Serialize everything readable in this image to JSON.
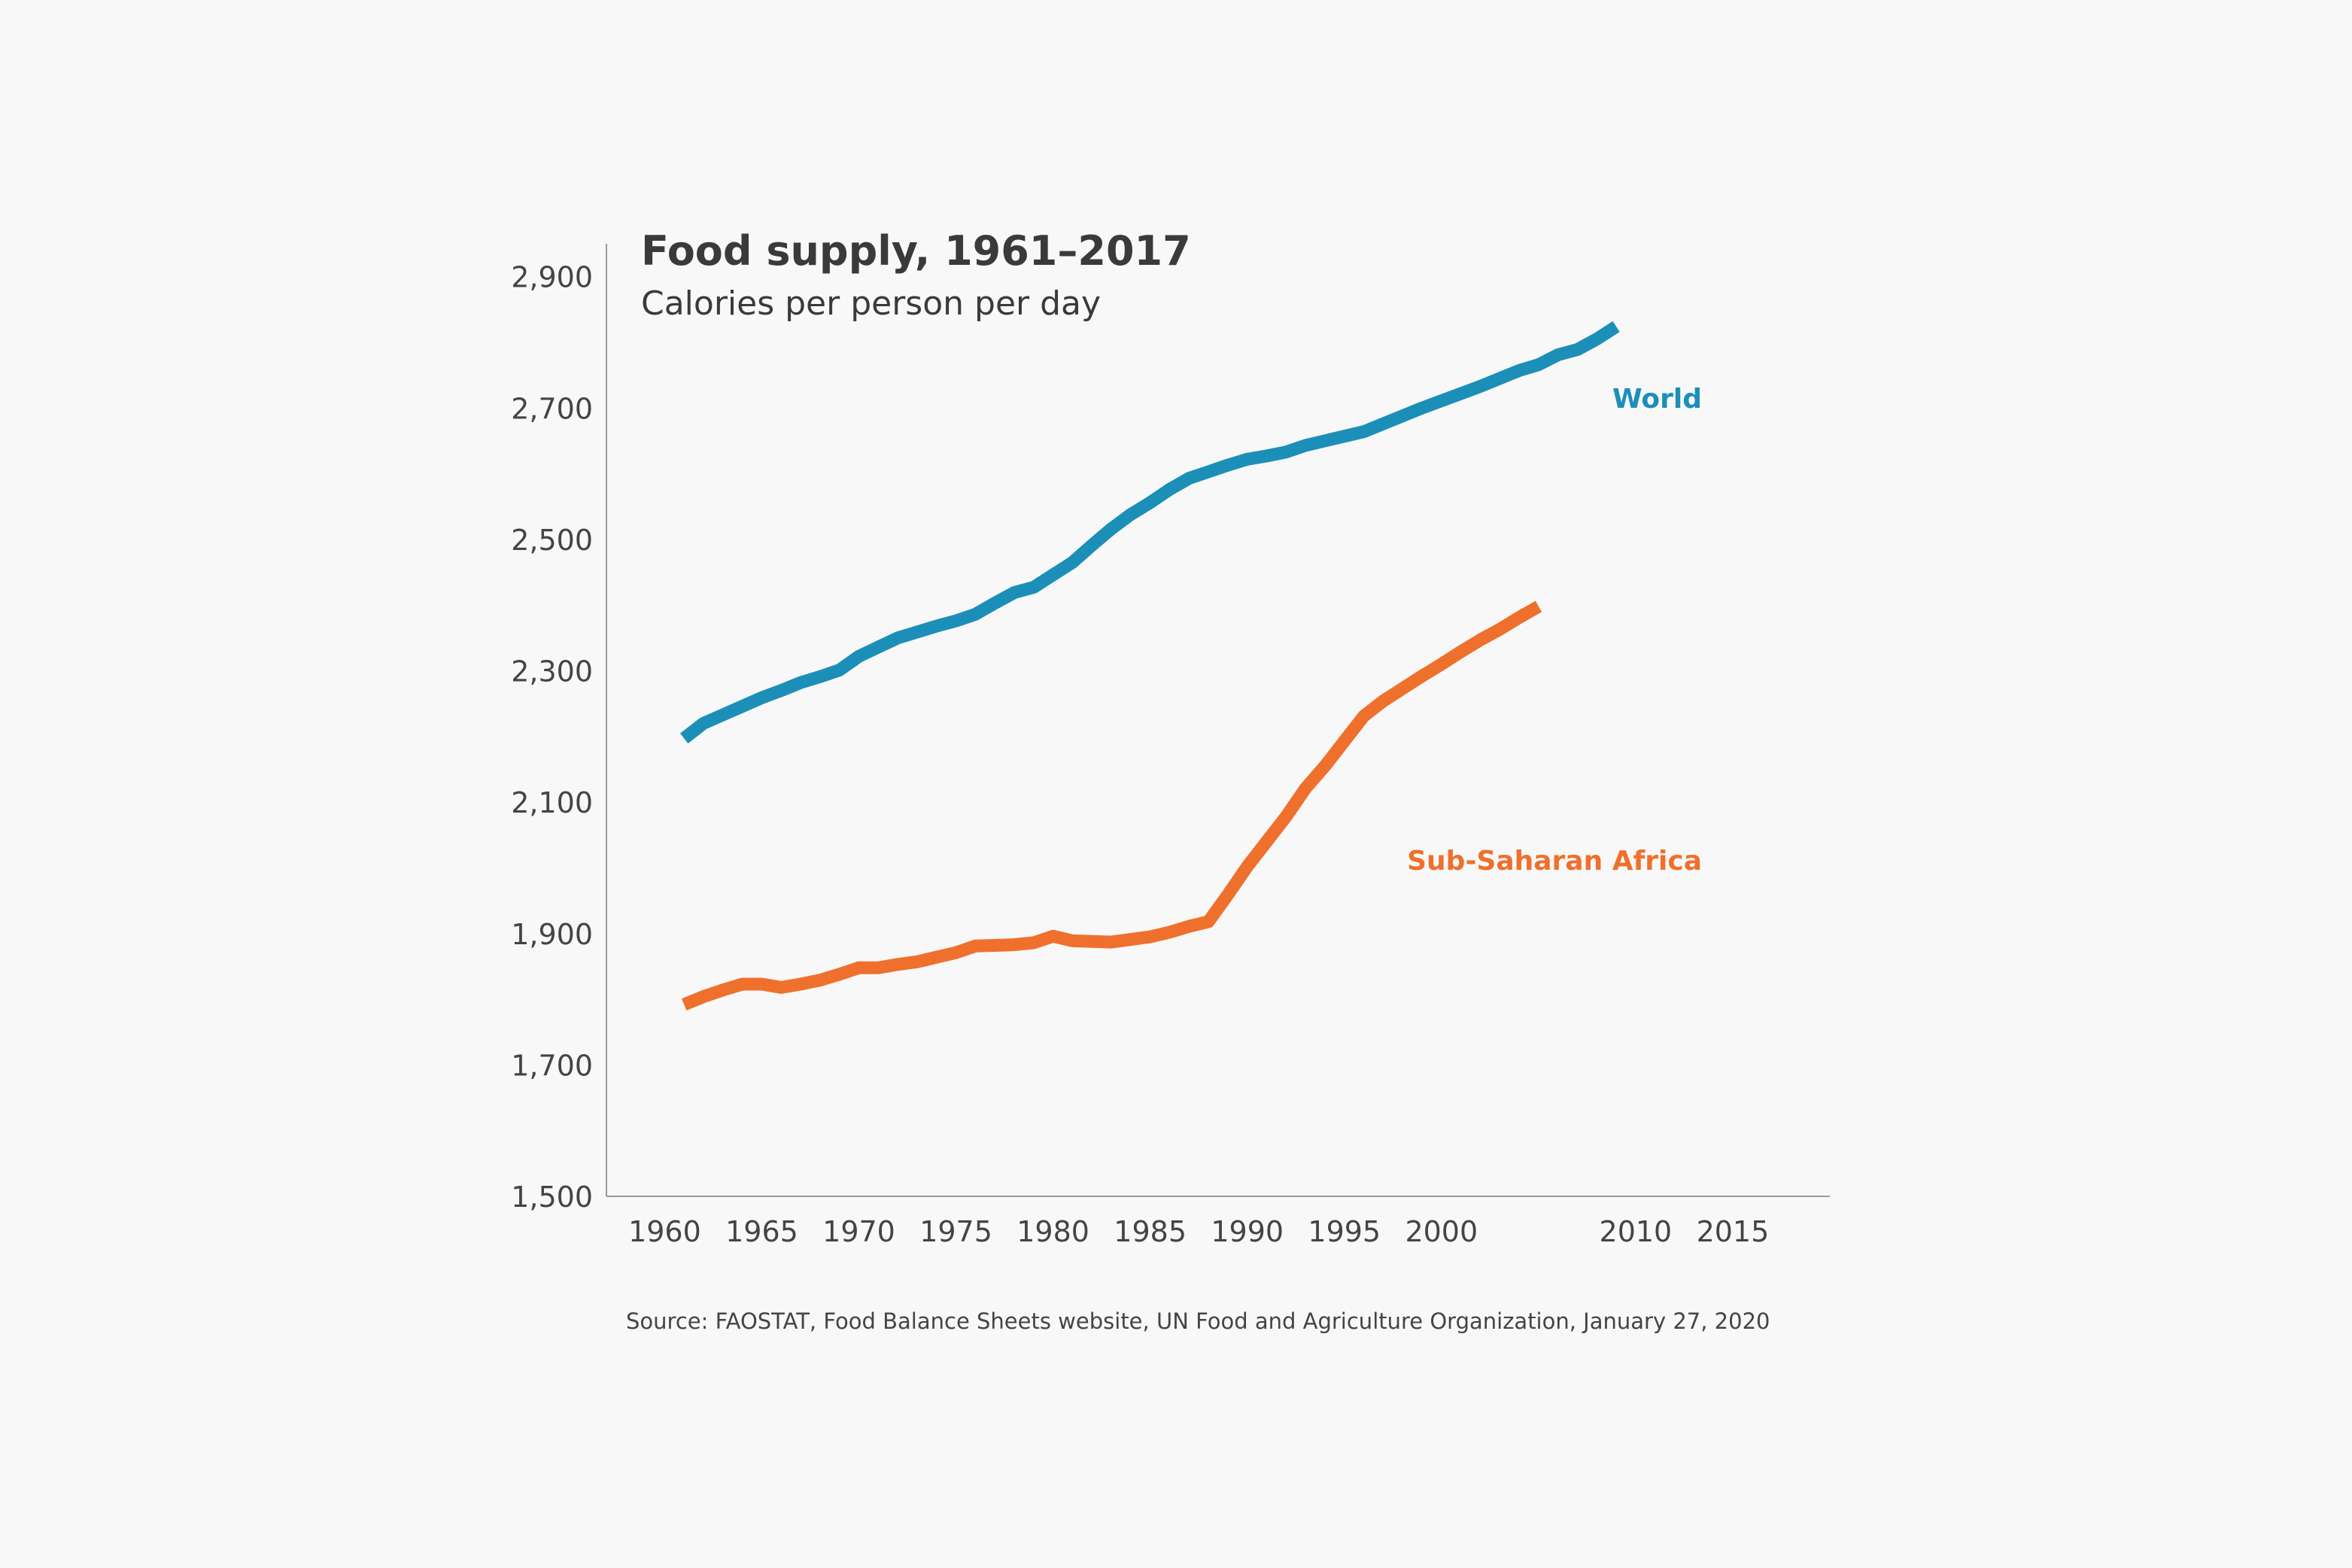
{
  "chart_data": {
    "type": "line",
    "title": "Food supply, 1961–2017",
    "subtitle": "Calories per person per day",
    "source": "Source: FAOSTAT, Food Balance Sheets website, UN Food and Agriculture Organization, January 27, 2020",
    "xlabel": "",
    "ylabel": "",
    "xlim": [
      1957,
      2020
    ],
    "ylim": [
      1500,
      2950
    ],
    "grid": false,
    "y_ticks": [
      1500,
      1700,
      1900,
      2100,
      2300,
      2500,
      2700,
      2900
    ],
    "y_tick_labels": [
      "1,500",
      "1,700",
      "1,900",
      "2,100",
      "2,300",
      "2,500",
      "2,700",
      "2,900"
    ],
    "x_ticks": [
      1960,
      1965,
      1970,
      1975,
      1980,
      1985,
      1990,
      1995,
      2000,
      2010,
      2015
    ],
    "x_tick_labels": [
      "1960",
      "1965",
      "1970",
      "1975",
      "1980",
      "1985",
      "1990",
      "1995",
      "2000",
      "2010",
      "2015"
    ],
    "series": [
      {
        "name": "World",
        "color": "#1b8fb8",
        "points": [
          [
            1961,
            2197
          ],
          [
            1962,
            2220
          ],
          [
            1963,
            2233
          ],
          [
            1964,
            2246
          ],
          [
            1965,
            2259
          ],
          [
            1966,
            2270
          ],
          [
            1967,
            2282
          ],
          [
            1968,
            2291
          ],
          [
            1969,
            2301
          ],
          [
            1970,
            2322
          ],
          [
            1971,
            2336
          ],
          [
            1972,
            2350
          ],
          [
            1973,
            2359
          ],
          [
            1974,
            2368
          ],
          [
            1975,
            2376
          ],
          [
            1976,
            2386
          ],
          [
            1977,
            2403
          ],
          [
            1978,
            2419
          ],
          [
            1979,
            2427
          ],
          [
            1980,
            2446
          ],
          [
            1981,
            2465
          ],
          [
            1982,
            2491
          ],
          [
            1983,
            2516
          ],
          [
            1984,
            2538
          ],
          [
            1985,
            2556
          ],
          [
            1986,
            2576
          ],
          [
            1987,
            2593
          ],
          [
            1988,
            2603
          ],
          [
            1989,
            2613
          ],
          [
            1990,
            2622
          ],
          [
            1991,
            2627
          ],
          [
            1992,
            2633
          ],
          [
            1993,
            2643
          ],
          [
            1994,
            2650
          ],
          [
            1995,
            2657
          ],
          [
            1996,
            2664
          ],
          [
            1997,
            2676
          ],
          [
            1998,
            2688
          ],
          [
            1999,
            2700
          ],
          [
            2000,
            2711
          ],
          [
            2001,
            2722
          ],
          [
            2002,
            2733
          ],
          [
            2003,
            2745
          ],
          [
            2004,
            2757
          ],
          [
            2005,
            2766
          ],
          [
            2006,
            2781
          ],
          [
            2007,
            2789
          ],
          [
            2008,
            2805
          ],
          [
            2009,
            2824
          ]
        ]
      },
      {
        "name": "Sub-Saharan Africa",
        "color": "#ef702c",
        "points": [
          [
            1961,
            1792
          ],
          [
            1962,
            1804
          ],
          [
            1963,
            1814
          ],
          [
            1964,
            1823
          ],
          [
            1965,
            1823
          ],
          [
            1966,
            1818
          ],
          [
            1967,
            1823
          ],
          [
            1968,
            1829
          ],
          [
            1969,
            1838
          ],
          [
            1970,
            1848
          ],
          [
            1971,
            1848
          ],
          [
            1972,
            1853
          ],
          [
            1973,
            1857
          ],
          [
            1974,
            1864
          ],
          [
            1975,
            1871
          ],
          [
            1976,
            1881
          ],
          [
            1977,
            1882
          ],
          [
            1978,
            1883
          ],
          [
            1979,
            1886
          ],
          [
            1980,
            1896
          ],
          [
            1981,
            1889
          ],
          [
            1982,
            1888
          ],
          [
            1983,
            1887
          ],
          [
            1984,
            1891
          ],
          [
            1985,
            1895
          ],
          [
            1986,
            1902
          ],
          [
            1987,
            1911
          ],
          [
            1988,
            1918
          ],
          [
            1989,
            1959
          ],
          [
            1990,
            2002
          ],
          [
            1991,
            2040
          ],
          [
            1992,
            2078
          ],
          [
            1993,
            2121
          ],
          [
            1994,
            2155
          ],
          [
            1995,
            2193
          ],
          [
            1996,
            2231
          ],
          [
            1997,
            2254
          ],
          [
            1998,
            2273
          ],
          [
            1999,
            2292
          ],
          [
            2000,
            2310
          ],
          [
            2001,
            2329
          ],
          [
            2002,
            2347
          ],
          [
            2003,
            2363
          ],
          [
            2004,
            2381
          ],
          [
            2005,
            2398
          ]
        ]
      }
    ]
  }
}
